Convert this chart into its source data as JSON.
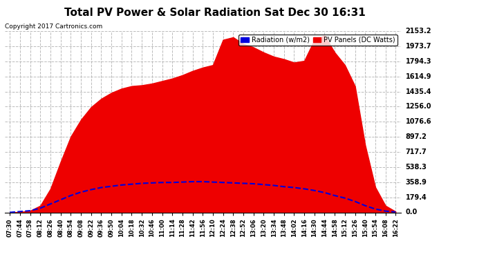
{
  "title": "Total PV Power & Solar Radiation Sat Dec 30 16:31",
  "copyright": "Copyright 2017 Cartronics.com",
  "legend_radiation": "Radiation (w/m2)",
  "legend_pv": "PV Panels (DC Watts)",
  "yticks": [
    0.0,
    179.4,
    358.9,
    538.3,
    717.7,
    897.2,
    1076.6,
    1256.0,
    1435.4,
    1614.9,
    1794.3,
    1973.7,
    2153.2
  ],
  "ymax": 2153.2,
  "ymin": 0.0,
  "bg_color": "#ffffff",
  "plot_bg_color": "#ffffff",
  "grid_color": "#bbbbbb",
  "pv_color": "#ee0000",
  "radiation_color": "#0000dd",
  "xtick_labels": [
    "07:30",
    "07:44",
    "07:58",
    "08:12",
    "08:26",
    "08:40",
    "08:54",
    "09:08",
    "09:22",
    "09:36",
    "09:50",
    "10:04",
    "10:18",
    "10:32",
    "10:46",
    "11:00",
    "11:14",
    "11:28",
    "11:42",
    "11:56",
    "12:10",
    "12:24",
    "12:38",
    "12:52",
    "13:06",
    "13:20",
    "13:34",
    "13:48",
    "14:02",
    "14:16",
    "14:30",
    "14:44",
    "14:58",
    "15:12",
    "15:26",
    "15:40",
    "15:54",
    "16:08",
    "16:22"
  ],
  "n_points": 39,
  "pv_shape": [
    0,
    5,
    20,
    80,
    280,
    600,
    900,
    1100,
    1250,
    1350,
    1420,
    1470,
    1500,
    1510,
    1530,
    1560,
    1590,
    1630,
    1680,
    1720,
    1750,
    2050,
    2080,
    2000,
    1960,
    1900,
    1850,
    1820,
    1780,
    1800,
    2050,
    2100,
    1900,
    1750,
    1500,
    800,
    300,
    80,
    10
  ],
  "radiation_shape": [
    0,
    10,
    20,
    50,
    100,
    150,
    200,
    240,
    270,
    295,
    310,
    325,
    335,
    345,
    350,
    355,
    355,
    360,
    365,
    365,
    360,
    355,
    350,
    345,
    340,
    330,
    320,
    305,
    295,
    280,
    260,
    235,
    200,
    170,
    130,
    80,
    40,
    15,
    5
  ]
}
